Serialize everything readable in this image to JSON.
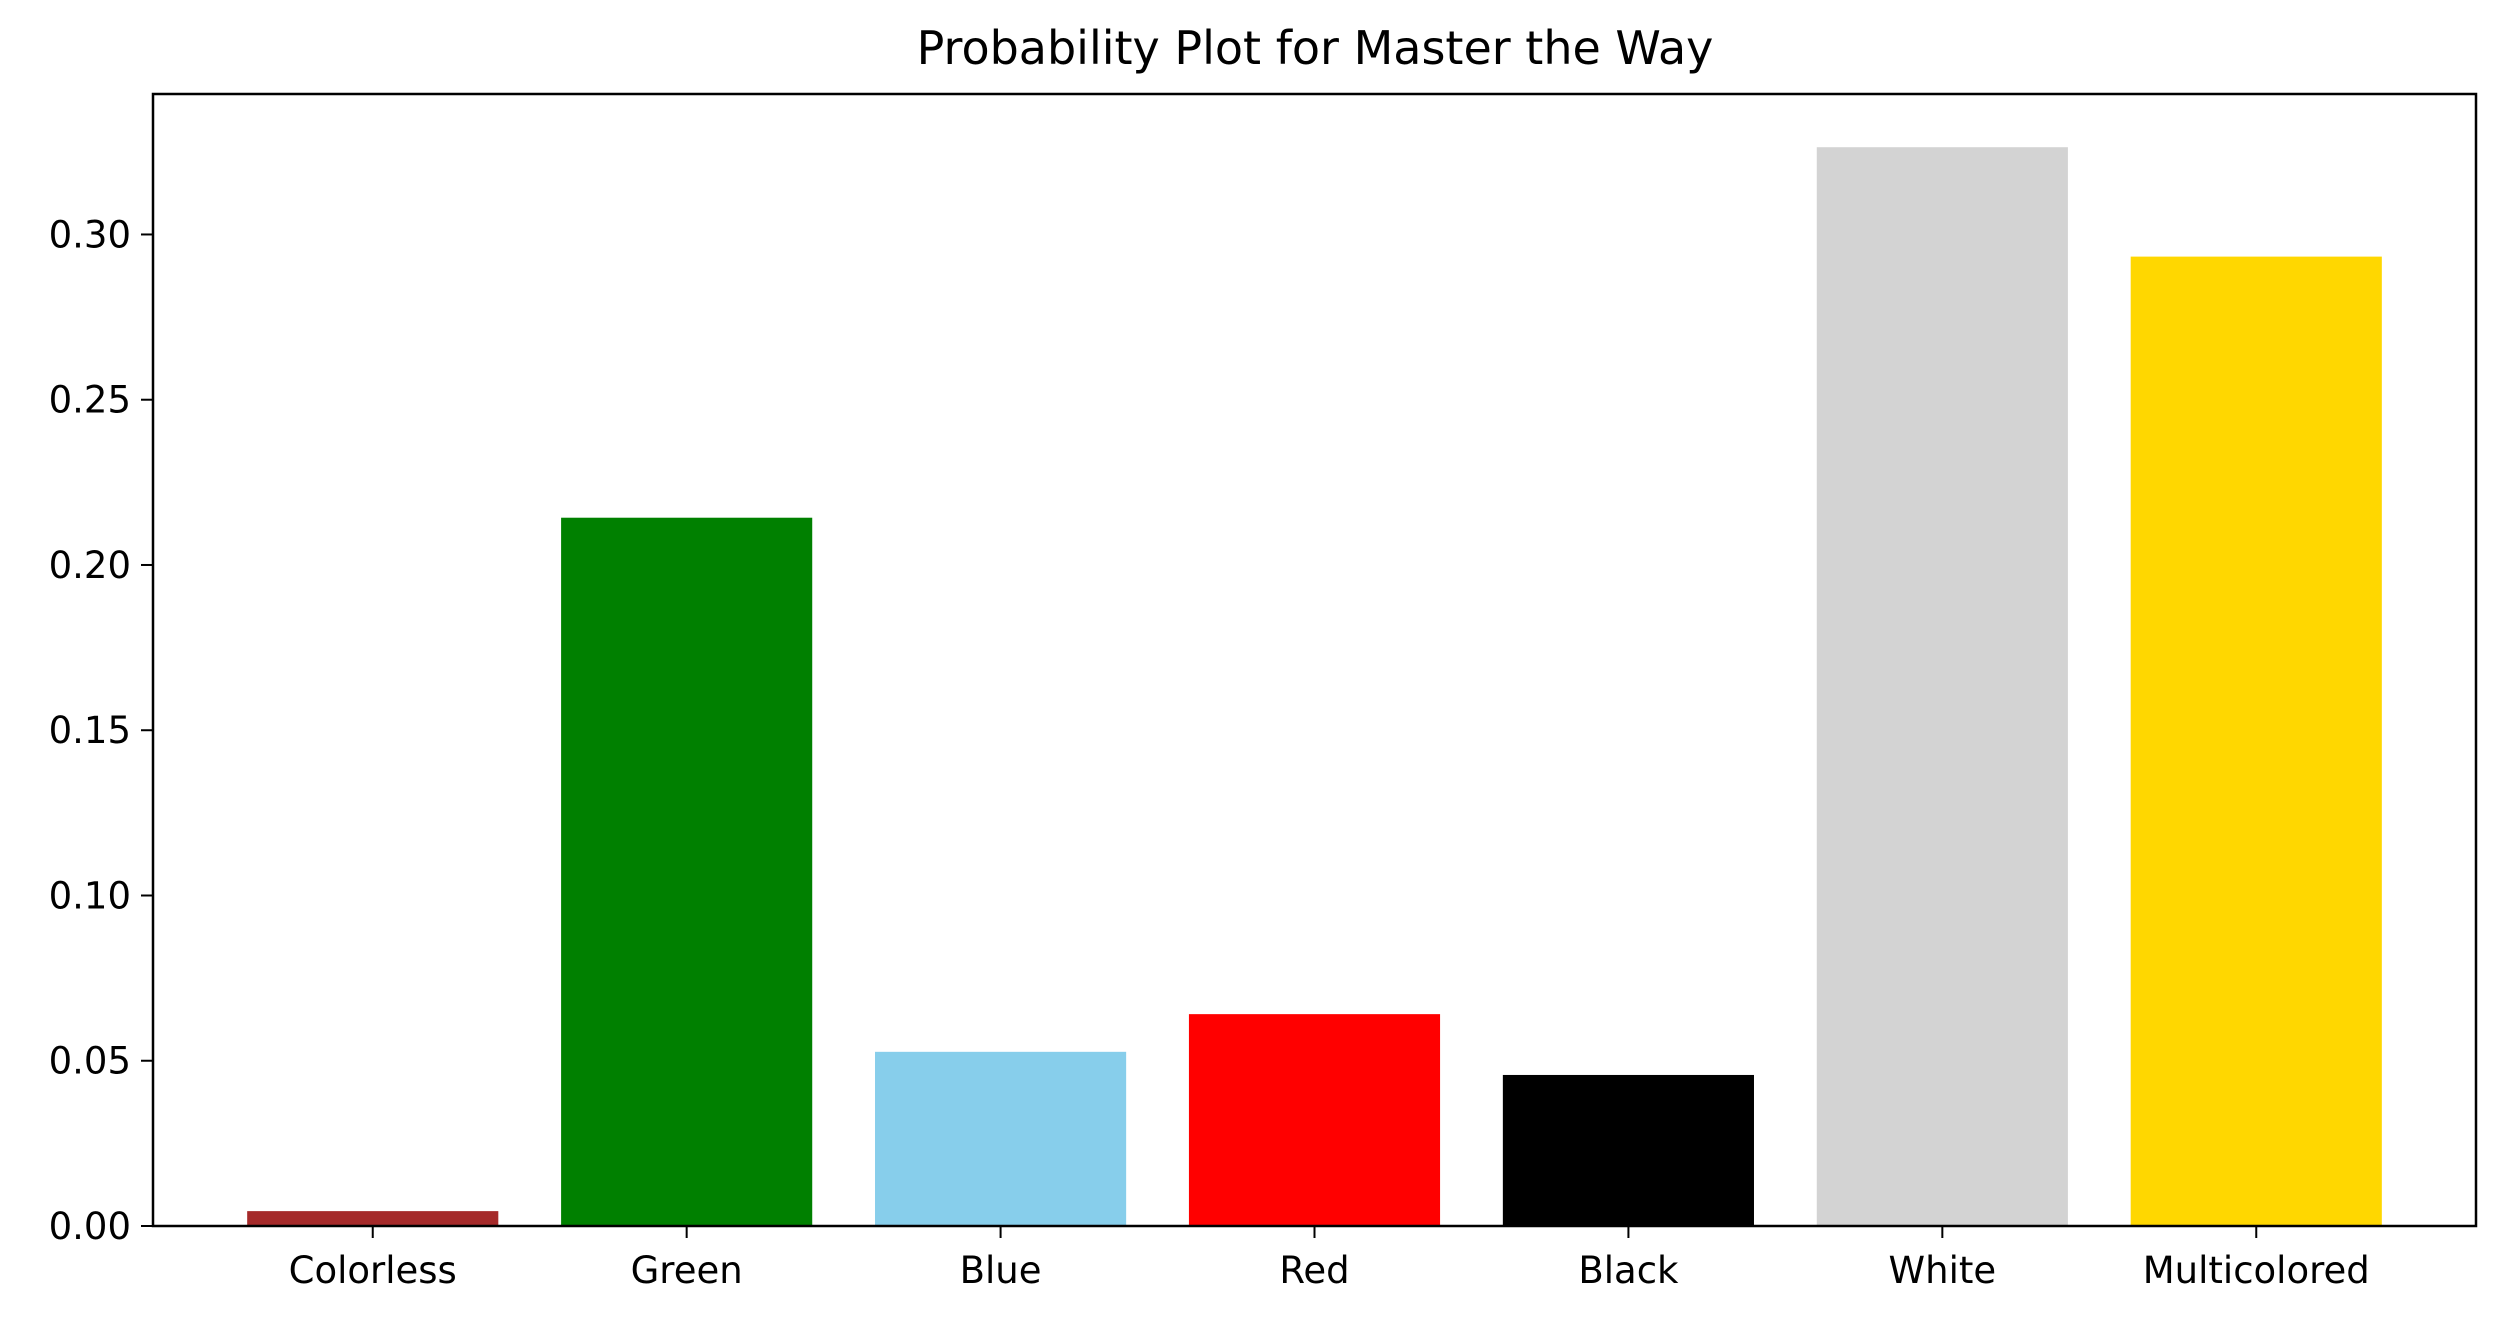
{
  "chart_data": {
    "type": "bar",
    "title": "Probability Plot for Master the Way",
    "xlabel": "",
    "ylabel": "",
    "categories": [
      "Colorless",
      "Green",
      "Blue",
      "Red",
      "Black",
      "White",
      "Multicolored"
    ],
    "values": [
      0.0045,
      0.2143,
      0.0527,
      0.0641,
      0.0457,
      0.3264,
      0.2933
    ],
    "colors": [
      "#a52a2a",
      "#008000",
      "#87ceeb",
      "#ff0000",
      "#000000",
      "#d3d3d3",
      "#ffd700"
    ],
    "ylim": [
      0,
      0.3425
    ],
    "yticks": [
      0.0,
      0.05,
      0.1,
      0.15,
      0.2,
      0.25,
      0.3
    ],
    "ytick_labels": [
      "0.00",
      "0.05",
      "0.10",
      "0.15",
      "0.20",
      "0.25",
      "0.30"
    ],
    "grid": false,
    "legend": "none"
  }
}
